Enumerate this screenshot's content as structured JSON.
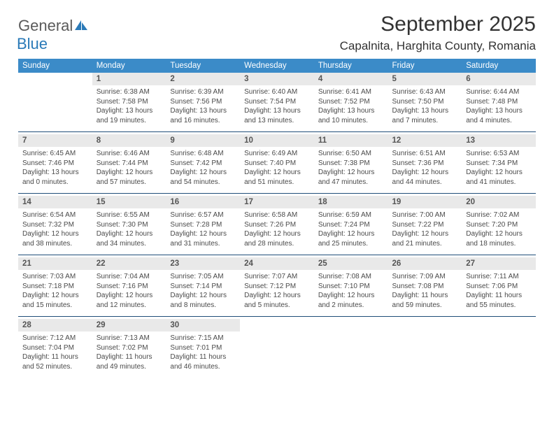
{
  "logo": {
    "word1": "General",
    "word2": "Blue",
    "icon_color": "#2a7ab8",
    "text1_color": "#5a5a5a"
  },
  "title": "September 2025",
  "location": "Capalnita, Harghita County, Romania",
  "colors": {
    "header_bg": "#3b8bc8",
    "header_text": "#ffffff",
    "daynum_bg": "#e9e9e9",
    "daynum_text": "#555555",
    "info_text": "#4a4a4a",
    "row_divider": "#1f4e79",
    "page_bg": "#ffffff"
  },
  "fonts": {
    "title_size": 30,
    "location_size": 17,
    "dow_size": 11.5,
    "daynum_size": 11.5,
    "info_size": 10
  },
  "days_of_week": [
    "Sunday",
    "Monday",
    "Tuesday",
    "Wednesday",
    "Thursday",
    "Friday",
    "Saturday"
  ],
  "weeks": [
    [
      {
        "num": "",
        "sunrise": "",
        "sunset": "",
        "daylight": ""
      },
      {
        "num": "1",
        "sunrise": "Sunrise: 6:38 AM",
        "sunset": "Sunset: 7:58 PM",
        "daylight": "Daylight: 13 hours and 19 minutes."
      },
      {
        "num": "2",
        "sunrise": "Sunrise: 6:39 AM",
        "sunset": "Sunset: 7:56 PM",
        "daylight": "Daylight: 13 hours and 16 minutes."
      },
      {
        "num": "3",
        "sunrise": "Sunrise: 6:40 AM",
        "sunset": "Sunset: 7:54 PM",
        "daylight": "Daylight: 13 hours and 13 minutes."
      },
      {
        "num": "4",
        "sunrise": "Sunrise: 6:41 AM",
        "sunset": "Sunset: 7:52 PM",
        "daylight": "Daylight: 13 hours and 10 minutes."
      },
      {
        "num": "5",
        "sunrise": "Sunrise: 6:43 AM",
        "sunset": "Sunset: 7:50 PM",
        "daylight": "Daylight: 13 hours and 7 minutes."
      },
      {
        "num": "6",
        "sunrise": "Sunrise: 6:44 AM",
        "sunset": "Sunset: 7:48 PM",
        "daylight": "Daylight: 13 hours and 4 minutes."
      }
    ],
    [
      {
        "num": "7",
        "sunrise": "Sunrise: 6:45 AM",
        "sunset": "Sunset: 7:46 PM",
        "daylight": "Daylight: 13 hours and 0 minutes."
      },
      {
        "num": "8",
        "sunrise": "Sunrise: 6:46 AM",
        "sunset": "Sunset: 7:44 PM",
        "daylight": "Daylight: 12 hours and 57 minutes."
      },
      {
        "num": "9",
        "sunrise": "Sunrise: 6:48 AM",
        "sunset": "Sunset: 7:42 PM",
        "daylight": "Daylight: 12 hours and 54 minutes."
      },
      {
        "num": "10",
        "sunrise": "Sunrise: 6:49 AM",
        "sunset": "Sunset: 7:40 PM",
        "daylight": "Daylight: 12 hours and 51 minutes."
      },
      {
        "num": "11",
        "sunrise": "Sunrise: 6:50 AM",
        "sunset": "Sunset: 7:38 PM",
        "daylight": "Daylight: 12 hours and 47 minutes."
      },
      {
        "num": "12",
        "sunrise": "Sunrise: 6:51 AM",
        "sunset": "Sunset: 7:36 PM",
        "daylight": "Daylight: 12 hours and 44 minutes."
      },
      {
        "num": "13",
        "sunrise": "Sunrise: 6:53 AM",
        "sunset": "Sunset: 7:34 PM",
        "daylight": "Daylight: 12 hours and 41 minutes."
      }
    ],
    [
      {
        "num": "14",
        "sunrise": "Sunrise: 6:54 AM",
        "sunset": "Sunset: 7:32 PM",
        "daylight": "Daylight: 12 hours and 38 minutes."
      },
      {
        "num": "15",
        "sunrise": "Sunrise: 6:55 AM",
        "sunset": "Sunset: 7:30 PM",
        "daylight": "Daylight: 12 hours and 34 minutes."
      },
      {
        "num": "16",
        "sunrise": "Sunrise: 6:57 AM",
        "sunset": "Sunset: 7:28 PM",
        "daylight": "Daylight: 12 hours and 31 minutes."
      },
      {
        "num": "17",
        "sunrise": "Sunrise: 6:58 AM",
        "sunset": "Sunset: 7:26 PM",
        "daylight": "Daylight: 12 hours and 28 minutes."
      },
      {
        "num": "18",
        "sunrise": "Sunrise: 6:59 AM",
        "sunset": "Sunset: 7:24 PM",
        "daylight": "Daylight: 12 hours and 25 minutes."
      },
      {
        "num": "19",
        "sunrise": "Sunrise: 7:00 AM",
        "sunset": "Sunset: 7:22 PM",
        "daylight": "Daylight: 12 hours and 21 minutes."
      },
      {
        "num": "20",
        "sunrise": "Sunrise: 7:02 AM",
        "sunset": "Sunset: 7:20 PM",
        "daylight": "Daylight: 12 hours and 18 minutes."
      }
    ],
    [
      {
        "num": "21",
        "sunrise": "Sunrise: 7:03 AM",
        "sunset": "Sunset: 7:18 PM",
        "daylight": "Daylight: 12 hours and 15 minutes."
      },
      {
        "num": "22",
        "sunrise": "Sunrise: 7:04 AM",
        "sunset": "Sunset: 7:16 PM",
        "daylight": "Daylight: 12 hours and 12 minutes."
      },
      {
        "num": "23",
        "sunrise": "Sunrise: 7:05 AM",
        "sunset": "Sunset: 7:14 PM",
        "daylight": "Daylight: 12 hours and 8 minutes."
      },
      {
        "num": "24",
        "sunrise": "Sunrise: 7:07 AM",
        "sunset": "Sunset: 7:12 PM",
        "daylight": "Daylight: 12 hours and 5 minutes."
      },
      {
        "num": "25",
        "sunrise": "Sunrise: 7:08 AM",
        "sunset": "Sunset: 7:10 PM",
        "daylight": "Daylight: 12 hours and 2 minutes."
      },
      {
        "num": "26",
        "sunrise": "Sunrise: 7:09 AM",
        "sunset": "Sunset: 7:08 PM",
        "daylight": "Daylight: 11 hours and 59 minutes."
      },
      {
        "num": "27",
        "sunrise": "Sunrise: 7:11 AM",
        "sunset": "Sunset: 7:06 PM",
        "daylight": "Daylight: 11 hours and 55 minutes."
      }
    ],
    [
      {
        "num": "28",
        "sunrise": "Sunrise: 7:12 AM",
        "sunset": "Sunset: 7:04 PM",
        "daylight": "Daylight: 11 hours and 52 minutes."
      },
      {
        "num": "29",
        "sunrise": "Sunrise: 7:13 AM",
        "sunset": "Sunset: 7:02 PM",
        "daylight": "Daylight: 11 hours and 49 minutes."
      },
      {
        "num": "30",
        "sunrise": "Sunrise: 7:15 AM",
        "sunset": "Sunset: 7:01 PM",
        "daylight": "Daylight: 11 hours and 46 minutes."
      },
      {
        "num": "",
        "sunrise": "",
        "sunset": "",
        "daylight": ""
      },
      {
        "num": "",
        "sunrise": "",
        "sunset": "",
        "daylight": ""
      },
      {
        "num": "",
        "sunrise": "",
        "sunset": "",
        "daylight": ""
      },
      {
        "num": "",
        "sunrise": "",
        "sunset": "",
        "daylight": ""
      }
    ]
  ]
}
